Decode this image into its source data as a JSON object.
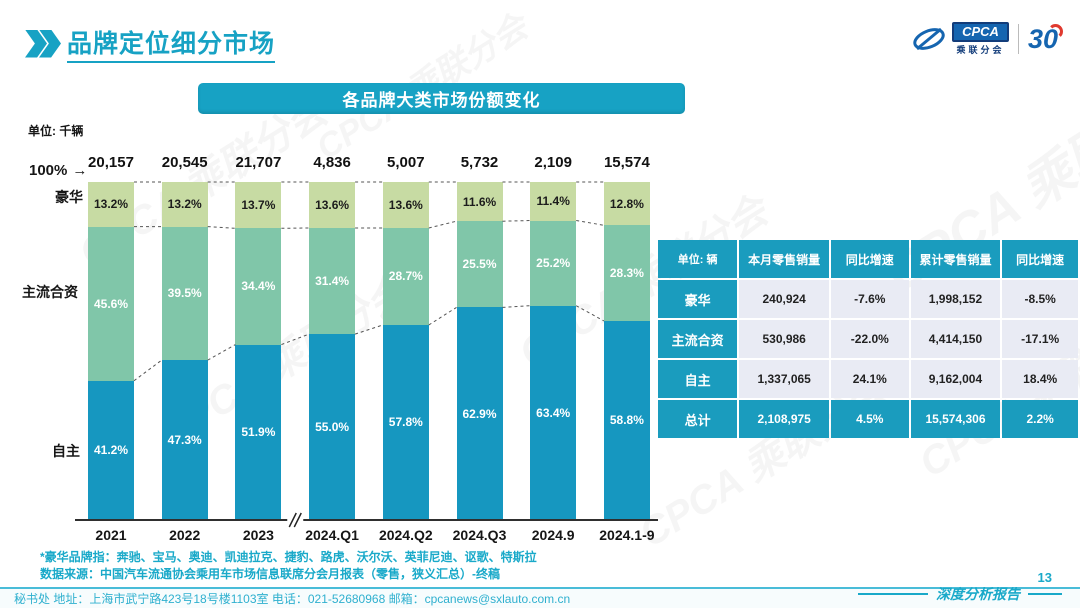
{
  "page": {
    "title": "品牌定位细分市场",
    "page_number": "13",
    "report_label": "深度分析报告",
    "bottom_bar_text": "秘书处  地址：上海市武宁路423号18号楼1103室 电话：021-52680968  邮箱：cpcanews@sxlauto.com.cn",
    "watermark": "CPCA 乘联分会"
  },
  "logos": {
    "cpca_word": "CPCA",
    "cpca_sub": "乘联分会",
    "anniversary": "30"
  },
  "banner": {
    "title": "各品牌大类市场份额变化"
  },
  "chart_data": {
    "type": "bar",
    "stacked": true,
    "title": "各品牌大类市场份额变化",
    "unit_label": "单位: 千辆",
    "axis_marker": "100%",
    "ylim": [
      0,
      100
    ],
    "grid": false,
    "legend_position": "left-axis-labels",
    "categories": [
      "2021",
      "2022",
      "2023",
      "2024.Q1",
      "2024.Q2",
      "2024.Q3",
      "2024.9",
      "2024.1-9"
    ],
    "totals": [
      "20,157",
      "20,545",
      "21,707",
      "4,836",
      "5,007",
      "5,732",
      "2,109",
      "15,574"
    ],
    "axis_break_after_index": 2,
    "series": [
      {
        "name": "豪华",
        "values": [
          13.2,
          13.2,
          13.7,
          13.6,
          13.6,
          11.6,
          11.4,
          12.8
        ],
        "labels": [
          "13.2%",
          "13.2%",
          "13.7%",
          "13.6%",
          "13.6%",
          "11.6%",
          "11.4%",
          "12.8%"
        ],
        "color": "#c7dba3",
        "text_color": "#1c1c1c"
      },
      {
        "name": "主流合资",
        "values": [
          45.6,
          39.5,
          34.4,
          31.4,
          28.7,
          25.5,
          25.2,
          28.3
        ],
        "labels": [
          "45.6%",
          "39.5%",
          "34.4%",
          "31.4%",
          "28.7%",
          "25.5%",
          "25.2%",
          "28.3%"
        ],
        "color": "#80c6a9",
        "text_color": "#ffffff"
      },
      {
        "name": "自主",
        "values": [
          41.2,
          47.3,
          51.9,
          55.0,
          57.8,
          62.9,
          63.4,
          58.8
        ],
        "labels": [
          "41.2%",
          "47.3%",
          "51.9%",
          "55.0%",
          "57.8%",
          "62.9%",
          "63.4%",
          "58.8%"
        ],
        "color": "#1697c0",
        "text_color": "#ffffff"
      }
    ]
  },
  "table": {
    "headers": [
      "单位: 辆",
      "本月零售销量",
      "同比增速",
      "累计零售销量",
      "同比增速"
    ],
    "rows": [
      {
        "label": "豪华",
        "cells": [
          "240,924",
          "-7.6%",
          "1,998,152",
          "-8.5%"
        ],
        "highlight": false
      },
      {
        "label": "主流合资",
        "cells": [
          "530,986",
          "-22.0%",
          "4,414,150",
          "-17.1%"
        ],
        "highlight": false
      },
      {
        "label": "自主",
        "cells": [
          "1,337,065",
          "24.1%",
          "9,162,004",
          "18.4%"
        ],
        "highlight": false
      },
      {
        "label": "总计",
        "cells": [
          "2,108,975",
          "4.5%",
          "15,574,306",
          "2.2%"
        ],
        "highlight": true
      }
    ]
  },
  "footnotes": [
    "*豪华品牌指：奔驰、宝马、奥迪、凯迪拉克、捷豹、路虎、沃尔沃、英菲尼迪、讴歌、特斯拉",
    "数据来源：中国汽车流通协会乘用车市场信息联席分会月报表（零售，狭义汇总）-终稿"
  ],
  "colors": {
    "accent_teal": "#17a2c4",
    "table_teal": "#1a9cbe",
    "luxury_green": "#c7dba3",
    "jv_green": "#80c6a9",
    "domestic_blue": "#1697c0",
    "table_cell_bg": "#e9ebf4",
    "logo_blue": "#1565b0",
    "logo_red": "#e03a2f"
  }
}
